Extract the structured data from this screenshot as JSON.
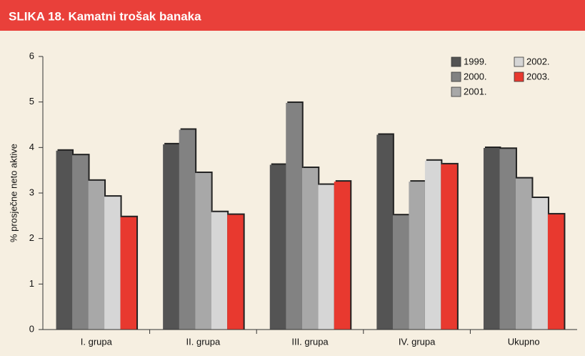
{
  "chart_data": {
    "type": "bar",
    "title": "SLIKA 18. Kamatni trošak banaka",
    "y_label": "% prosječne neto aktive",
    "categories": [
      "I. grupa",
      "II. grupa",
      "III. grupa",
      "IV. grupa",
      "Ukupno"
    ],
    "series": [
      {
        "name": "1999.",
        "color": "#545454",
        "values": [
          3.93,
          4.07,
          3.62,
          4.28,
          3.99
        ]
      },
      {
        "name": "2000.",
        "color": "#828282",
        "values": [
          3.83,
          4.39,
          4.98,
          2.51,
          3.97
        ]
      },
      {
        "name": "2001.",
        "color": "#a8a8a8",
        "values": [
          3.27,
          3.44,
          3.55,
          3.25,
          3.32
        ]
      },
      {
        "name": "2002.",
        "color": "#d6d6d6",
        "values": [
          2.92,
          2.58,
          3.18,
          3.71,
          2.89
        ]
      },
      {
        "name": "2003.",
        "color": "#e8392f",
        "values": [
          2.47,
          2.52,
          3.25,
          3.63,
          2.53
        ]
      }
    ],
    "ylim": [
      0,
      6
    ],
    "yticks": [
      0,
      1,
      2,
      3,
      4,
      5,
      6
    ],
    "legend": "top-right"
  }
}
